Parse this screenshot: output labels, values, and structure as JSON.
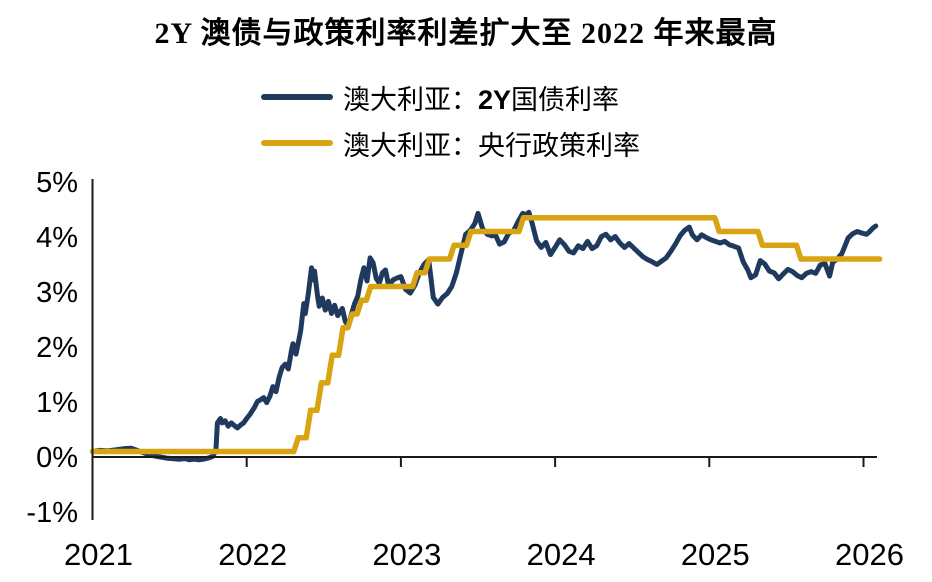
{
  "title": "2Y 澳债与政策利率利差扩大至 2022 年来最高",
  "legend": [
    {
      "prefix": "澳大利亚：",
      "em": "2Y",
      "suffix": "国债利率",
      "color": "#1f3a5e"
    },
    {
      "prefix": "澳大利亚：",
      "em": "",
      "suffix": "央行政策利率",
      "color": "#d8a412"
    }
  ],
  "chart_data": {
    "type": "line",
    "title": "2Y 澳债与政策利率利差扩大至 2022 年来最高",
    "x_unit": "decimal_year",
    "y_unit": "%",
    "x_axis": {
      "range": [
        2021,
        2026.15
      ],
      "ticks": [
        {
          "label": "2021",
          "value": 2021
        },
        {
          "label": "2022",
          "value": 2022
        },
        {
          "label": "2023",
          "value": 2023
        },
        {
          "label": "2024",
          "value": 2024
        },
        {
          "label": "2025",
          "value": 2025
        },
        {
          "label": "2026",
          "value": 2026
        }
      ]
    },
    "y_axis": {
      "range": [
        -1,
        5
      ],
      "ticks": [
        {
          "label": "5%",
          "value": 5
        },
        {
          "label": "4%",
          "value": 4
        },
        {
          "label": "3%",
          "value": 3
        },
        {
          "label": "2%",
          "value": 2
        },
        {
          "label": "1%",
          "value": 1
        },
        {
          "label": "0%",
          "value": 0
        },
        {
          "label": "-1%",
          "value": -1
        }
      ]
    },
    "grid": false,
    "legend_position": "top",
    "series": [
      {
        "id": "au-2y-bond-yield-line",
        "name": "澳大利亚：2Y国债利率",
        "color": "#1f3a5e",
        "line_type": "line",
        "points": [
          [
            2021.0,
            0.1
          ],
          [
            2021.05,
            0.12
          ],
          [
            2021.1,
            0.11
          ],
          [
            2021.15,
            0.13
          ],
          [
            2021.2,
            0.15
          ],
          [
            2021.25,
            0.16
          ],
          [
            2021.28,
            0.13
          ],
          [
            2021.32,
            0.09
          ],
          [
            2021.36,
            0.05
          ],
          [
            2021.4,
            0.02
          ],
          [
            2021.44,
            0.0
          ],
          [
            2021.48,
            -0.02
          ],
          [
            2021.52,
            -0.03
          ],
          [
            2021.56,
            -0.04
          ],
          [
            2021.6,
            -0.03
          ],
          [
            2021.63,
            -0.05
          ],
          [
            2021.66,
            -0.04
          ],
          [
            2021.69,
            -0.05
          ],
          [
            2021.72,
            -0.04
          ],
          [
            2021.75,
            -0.02
          ],
          [
            2021.78,
            0.01
          ],
          [
            2021.8,
            0.12
          ],
          [
            2021.81,
            0.62
          ],
          [
            2021.83,
            0.7
          ],
          [
            2021.84,
            0.62
          ],
          [
            2021.86,
            0.66
          ],
          [
            2021.88,
            0.56
          ],
          [
            2021.9,
            0.62
          ],
          [
            2021.92,
            0.57
          ],
          [
            2021.94,
            0.53
          ],
          [
            2021.96,
            0.58
          ],
          [
            2021.98,
            0.62
          ],
          [
            2022.0,
            0.7
          ],
          [
            2022.02,
            0.77
          ],
          [
            2022.05,
            0.9
          ],
          [
            2022.07,
            1.01
          ],
          [
            2022.09,
            1.04
          ],
          [
            2022.11,
            1.08
          ],
          [
            2022.13,
            0.99
          ],
          [
            2022.15,
            1.1
          ],
          [
            2022.17,
            1.28
          ],
          [
            2022.19,
            1.19
          ],
          [
            2022.21,
            1.45
          ],
          [
            2022.23,
            1.63
          ],
          [
            2022.25,
            1.69
          ],
          [
            2022.27,
            1.6
          ],
          [
            2022.29,
            1.93
          ],
          [
            2022.3,
            2.06
          ],
          [
            2022.32,
            1.87
          ],
          [
            2022.34,
            2.15
          ],
          [
            2022.35,
            2.3
          ],
          [
            2022.37,
            2.79
          ],
          [
            2022.38,
            2.61
          ],
          [
            2022.4,
            2.98
          ],
          [
            2022.42,
            3.44
          ],
          [
            2022.43,
            3.22
          ],
          [
            2022.44,
            3.38
          ],
          [
            2022.46,
            2.92
          ],
          [
            2022.47,
            2.74
          ],
          [
            2022.49,
            2.89
          ],
          [
            2022.51,
            2.67
          ],
          [
            2022.53,
            2.83
          ],
          [
            2022.55,
            2.61
          ],
          [
            2022.57,
            2.76
          ],
          [
            2022.59,
            2.57
          ],
          [
            2022.62,
            2.7
          ],
          [
            2022.64,
            2.46
          ],
          [
            2022.66,
            2.39
          ],
          [
            2022.68,
            2.61
          ],
          [
            2022.7,
            2.79
          ],
          [
            2022.72,
            2.92
          ],
          [
            2022.74,
            3.22
          ],
          [
            2022.76,
            3.44
          ],
          [
            2022.78,
            3.2
          ],
          [
            2022.8,
            3.62
          ],
          [
            2022.82,
            3.53
          ],
          [
            2022.84,
            3.25
          ],
          [
            2022.86,
            3.16
          ],
          [
            2022.88,
            3.35
          ],
          [
            2022.9,
            3.4
          ],
          [
            2022.92,
            3.12
          ],
          [
            2022.95,
            3.22
          ],
          [
            2022.97,
            3.25
          ],
          [
            2023.0,
            3.28
          ],
          [
            2023.03,
            3.05
          ],
          [
            2023.06,
            2.98
          ],
          [
            2023.09,
            3.12
          ],
          [
            2023.12,
            3.35
          ],
          [
            2023.15,
            3.5
          ],
          [
            2023.18,
            3.59
          ],
          [
            2023.21,
            2.9
          ],
          [
            2023.24,
            2.78
          ],
          [
            2023.27,
            2.9
          ],
          [
            2023.3,
            2.97
          ],
          [
            2023.33,
            3.1
          ],
          [
            2023.36,
            3.35
          ],
          [
            2023.39,
            3.7
          ],
          [
            2023.42,
            4.05
          ],
          [
            2023.45,
            4.12
          ],
          [
            2023.48,
            4.25
          ],
          [
            2023.5,
            4.43
          ],
          [
            2023.53,
            4.15
          ],
          [
            2023.56,
            4.05
          ],
          [
            2023.59,
            4.02
          ],
          [
            2023.61,
            4.06
          ],
          [
            2023.64,
            3.87
          ],
          [
            2023.67,
            3.91
          ],
          [
            2023.7,
            4.07
          ],
          [
            2023.73,
            4.11
          ],
          [
            2023.76,
            4.28
          ],
          [
            2023.79,
            4.43
          ],
          [
            2023.81,
            4.4
          ],
          [
            2023.83,
            4.45
          ],
          [
            2023.85,
            4.26
          ],
          [
            2023.88,
            3.93
          ],
          [
            2023.91,
            3.81
          ],
          [
            2023.94,
            3.9
          ],
          [
            2023.97,
            3.68
          ],
          [
            2024.0,
            3.81
          ],
          [
            2024.03,
            3.95
          ],
          [
            2024.06,
            3.86
          ],
          [
            2024.09,
            3.74
          ],
          [
            2024.12,
            3.71
          ],
          [
            2024.15,
            3.84
          ],
          [
            2024.18,
            3.79
          ],
          [
            2024.21,
            3.92
          ],
          [
            2024.24,
            3.79
          ],
          [
            2024.27,
            3.84
          ],
          [
            2024.3,
            4.01
          ],
          [
            2024.33,
            4.05
          ],
          [
            2024.36,
            3.95
          ],
          [
            2024.39,
            4.01
          ],
          [
            2024.42,
            3.89
          ],
          [
            2024.45,
            3.81
          ],
          [
            2024.48,
            3.88
          ],
          [
            2024.51,
            3.8
          ],
          [
            2024.54,
            3.72
          ],
          [
            2024.57,
            3.64
          ],
          [
            2024.6,
            3.59
          ],
          [
            2024.63,
            3.55
          ],
          [
            2024.66,
            3.5
          ],
          [
            2024.69,
            3.56
          ],
          [
            2024.72,
            3.62
          ],
          [
            2024.75,
            3.74
          ],
          [
            2024.78,
            3.87
          ],
          [
            2024.81,
            4.02
          ],
          [
            2024.84,
            4.12
          ],
          [
            2024.87,
            4.18
          ],
          [
            2024.89,
            4.04
          ],
          [
            2024.92,
            3.95
          ],
          [
            2024.95,
            4.04
          ],
          [
            2024.98,
            3.99
          ],
          [
            2025.01,
            3.95
          ],
          [
            2025.04,
            3.92
          ],
          [
            2025.07,
            3.89
          ],
          [
            2025.1,
            3.92
          ],
          [
            2025.13,
            3.86
          ],
          [
            2025.16,
            3.83
          ],
          [
            2025.19,
            3.8
          ],
          [
            2025.22,
            3.55
          ],
          [
            2025.25,
            3.4
          ],
          [
            2025.27,
            3.26
          ],
          [
            2025.3,
            3.31
          ],
          [
            2025.33,
            3.57
          ],
          [
            2025.36,
            3.51
          ],
          [
            2025.39,
            3.38
          ],
          [
            2025.42,
            3.35
          ],
          [
            2025.45,
            3.24
          ],
          [
            2025.48,
            3.33
          ],
          [
            2025.51,
            3.41
          ],
          [
            2025.54,
            3.37
          ],
          [
            2025.57,
            3.3
          ],
          [
            2025.6,
            3.26
          ],
          [
            2025.63,
            3.34
          ],
          [
            2025.66,
            3.37
          ],
          [
            2025.69,
            3.34
          ],
          [
            2025.72,
            3.49
          ],
          [
            2025.75,
            3.52
          ],
          [
            2025.78,
            3.29
          ],
          [
            2025.8,
            3.54
          ],
          [
            2025.83,
            3.6
          ],
          [
            2025.86,
            3.7
          ],
          [
            2025.88,
            3.84
          ],
          [
            2025.9,
            3.98
          ],
          [
            2025.93,
            4.06
          ],
          [
            2025.96,
            4.1
          ],
          [
            2025.99,
            4.07
          ],
          [
            2026.02,
            4.05
          ],
          [
            2026.04,
            4.1
          ],
          [
            2026.06,
            4.16
          ],
          [
            2026.08,
            4.2
          ]
        ]
      },
      {
        "id": "rba-policy-rate-line",
        "name": "澳大利亚：央行政策利率",
        "color": "#d8a412",
        "line_type": "step",
        "points": [
          [
            2021.0,
            0.1
          ],
          [
            2022.32,
            0.35
          ],
          [
            2022.4,
            0.85
          ],
          [
            2022.47,
            1.35
          ],
          [
            2022.54,
            1.85
          ],
          [
            2022.61,
            2.35
          ],
          [
            2022.67,
            2.6
          ],
          [
            2022.73,
            2.85
          ],
          [
            2022.79,
            3.1
          ],
          [
            2023.09,
            3.35
          ],
          [
            2023.17,
            3.6
          ],
          [
            2023.33,
            3.85
          ],
          [
            2023.44,
            4.1
          ],
          [
            2023.78,
            4.35
          ],
          [
            2025.05,
            4.1
          ],
          [
            2025.33,
            3.85
          ],
          [
            2025.58,
            3.6
          ],
          [
            2026.09,
            3.6
          ]
        ]
      }
    ]
  }
}
